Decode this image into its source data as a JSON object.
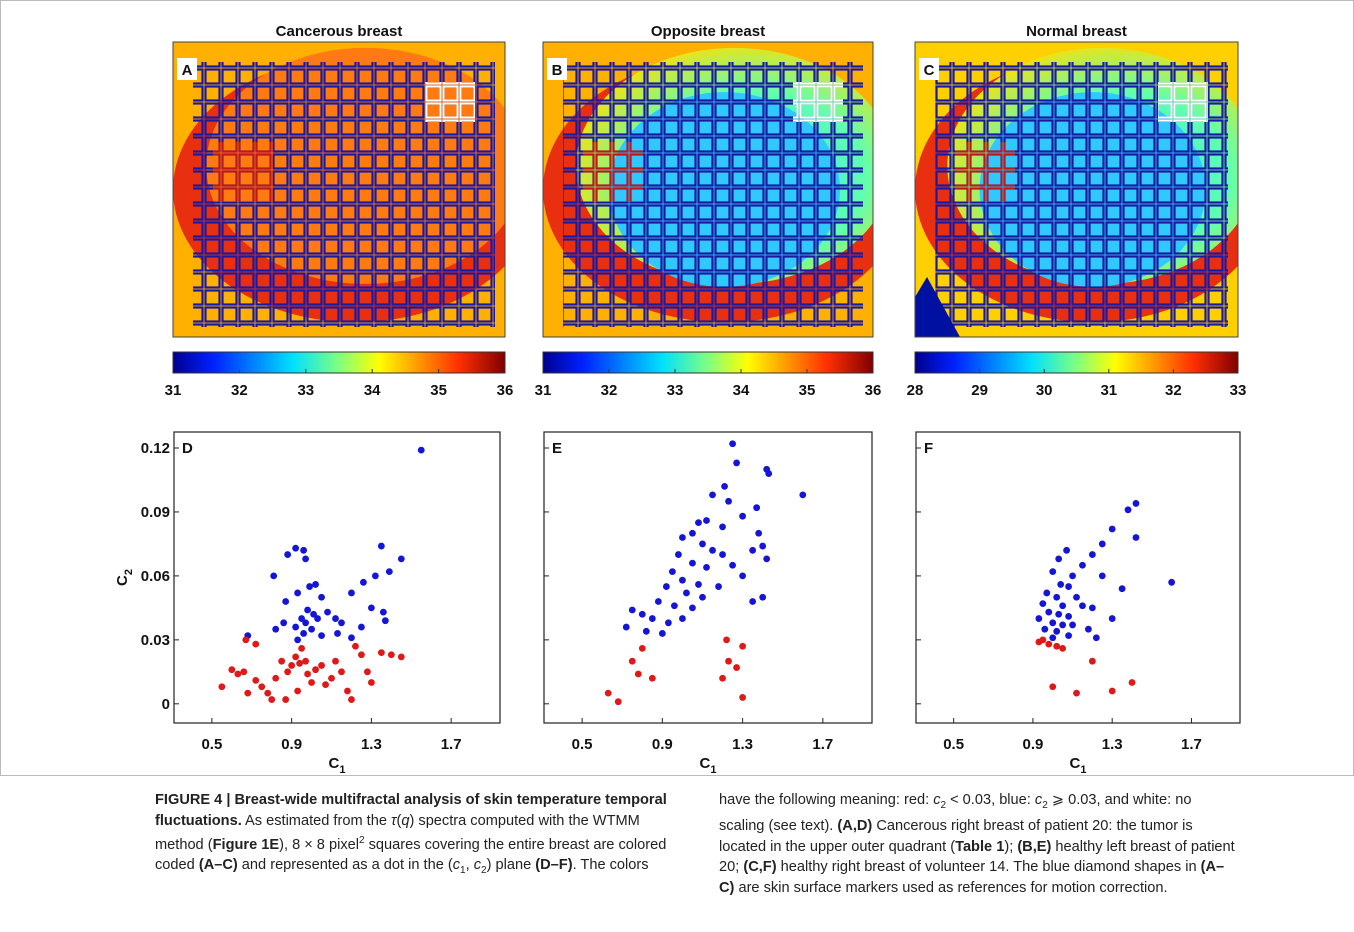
{
  "figure": {
    "images": [
      {
        "title": "Cancerous breast",
        "letter": "A",
        "cbar_lim": [
          31,
          36
        ],
        "cbar_ticks": [
          31,
          32,
          33,
          34,
          35,
          36
        ]
      },
      {
        "title": "Opposite breast",
        "letter": "B",
        "cbar_lim": [
          31,
          36
        ],
        "cbar_ticks": [
          31,
          32,
          33,
          34,
          35,
          36
        ]
      },
      {
        "title": "Normal breast",
        "letter": "C",
        "cbar_lim": [
          28,
          33
        ],
        "cbar_ticks": [
          28,
          29,
          30,
          31,
          32,
          33
        ]
      }
    ],
    "caption": [
      {
        "text": "FIGURE 4 | Breast-wide multifractal analysis of skin temperature temporal fluctuations.",
        "style": "b"
      },
      {
        "text": " As estimated from the "
      },
      {
        "text": "τ",
        "style": "i"
      },
      {
        "text": "("
      },
      {
        "text": "q",
        "style": "i"
      },
      {
        "text": ") spectra computed with the WTMM method ("
      },
      {
        "text": "Figure 1E",
        "style": "b"
      },
      {
        "text": "), 8 × 8 pixel"
      },
      {
        "text": "2",
        "style": "sup"
      },
      {
        "text": " squares covering the entire breast are colored coded "
      },
      {
        "text": "(A–C)",
        "style": "b"
      },
      {
        "text": " and represented as a dot in the ("
      },
      {
        "text": "c",
        "style": "i"
      },
      {
        "text": "1",
        "style": "sub"
      },
      {
        "text": ", "
      },
      {
        "text": "c",
        "style": "i"
      },
      {
        "text": "2",
        "style": "sub"
      },
      {
        "text": ") plane "
      },
      {
        "text": "(D–F)",
        "style": "b"
      },
      {
        "text": ". The colors have the following meaning: red: "
      },
      {
        "text": "c",
        "style": "i"
      },
      {
        "text": "2",
        "style": "sub"
      },
      {
        "text": " < 0.03, blue: "
      },
      {
        "text": "c",
        "style": "i"
      },
      {
        "text": "2",
        "style": "sub"
      },
      {
        "text": " ⩾ 0.03, and white: no scaling (see text). "
      },
      {
        "text": "(A,D)",
        "style": "b"
      },
      {
        "text": " Cancerous right breast of patient 20: the tumor is located in the upper outer quadrant ("
      },
      {
        "text": "Table 1",
        "style": "b"
      },
      {
        "text": "); "
      },
      {
        "text": "(B,E)",
        "style": "b"
      },
      {
        "text": " healthy left breast of patient 20; "
      },
      {
        "text": "(C,F)",
        "style": "b"
      },
      {
        "text": " healthy right breast of volunteer 14. The blue diamond shapes in "
      },
      {
        "text": "(A–C)",
        "style": "b"
      },
      {
        "text": " are skin surface markers used as references for motion correction."
      }
    ]
  },
  "chart_data": [
    {
      "type": "scatter",
      "letter": "D",
      "xlim": [
        0.31,
        1.945
      ],
      "ylim": [
        -0.009,
        0.1275
      ],
      "xticks": [
        0.5,
        0.9,
        1.3,
        1.7
      ],
      "yticks": [
        0,
        0.03,
        0.06,
        0.09,
        0.12
      ],
      "show_ytick_labels": true,
      "x_label": {
        "base": "C",
        "sub": "1"
      },
      "y_label": {
        "base": "C",
        "sub": "2"
      },
      "series": [
        {
          "color": "#1515d8",
          "x": [
            1.55,
            0.92,
            0.96,
            0.88,
            0.97,
            1.35,
            1.45,
            1.39,
            1.32,
            1.26,
            1.2,
            0.81,
            1.02,
            0.99,
            1.05,
            0.93,
            0.87,
            0.98,
            1.01,
            0.95,
            0.97,
            1.03,
            0.92,
            1.0,
            0.96,
            1.08,
            1.12,
            1.15,
            1.25,
            1.3,
            1.36,
            1.37,
            1.13,
            0.86,
            0.82,
            0.68,
            1.05,
            0.93,
            1.2
          ],
          "y": [
            0.119,
            0.073,
            0.072,
            0.07,
            0.068,
            0.074,
            0.068,
            0.062,
            0.06,
            0.057,
            0.052,
            0.06,
            0.056,
            0.055,
            0.05,
            0.052,
            0.048,
            0.044,
            0.042,
            0.04,
            0.038,
            0.04,
            0.036,
            0.035,
            0.033,
            0.043,
            0.04,
            0.038,
            0.036,
            0.045,
            0.043,
            0.039,
            0.033,
            0.038,
            0.035,
            0.032,
            0.032,
            0.03,
            0.031
          ]
        },
        {
          "color": "#e01818",
          "x": [
            0.55,
            0.6,
            0.63,
            0.66,
            0.68,
            0.72,
            0.75,
            0.78,
            0.8,
            0.82,
            0.85,
            0.88,
            0.9,
            0.92,
            0.94,
            0.95,
            0.97,
            0.98,
            1.0,
            1.02,
            1.05,
            1.07,
            1.1,
            1.12,
            1.15,
            1.18,
            1.2,
            1.22,
            1.25,
            1.28,
            1.3,
            1.35,
            1.4,
            1.45,
            0.67,
            0.72,
            0.93,
            0.87
          ],
          "y": [
            0.008,
            0.016,
            0.014,
            0.015,
            0.005,
            0.011,
            0.008,
            0.005,
            0.002,
            0.012,
            0.02,
            0.015,
            0.018,
            0.022,
            0.019,
            0.026,
            0.02,
            0.014,
            0.01,
            0.016,
            0.018,
            0.009,
            0.012,
            0.02,
            0.015,
            0.006,
            0.002,
            0.027,
            0.023,
            0.015,
            0.01,
            0.024,
            0.023,
            0.022,
            0.03,
            0.028,
            0.006,
            0.002
          ]
        }
      ]
    },
    {
      "type": "scatter",
      "letter": "E",
      "xlim": [
        0.31,
        1.945
      ],
      "ylim": [
        -0.009,
        0.1275
      ],
      "xticks": [
        0.5,
        0.9,
        1.3,
        1.7
      ],
      "yticks": [
        0,
        0.03,
        0.06,
        0.09,
        0.12
      ],
      "show_ytick_labels": false,
      "x_label": {
        "base": "C",
        "sub": "1"
      },
      "series": [
        {
          "color": "#1515d8",
          "x": [
            1.25,
            1.27,
            1.42,
            1.43,
            1.6,
            1.21,
            1.15,
            1.23,
            1.37,
            1.3,
            1.12,
            1.08,
            1.2,
            1.38,
            1.4,
            1.35,
            1.42,
            1.05,
            1.1,
            1.0,
            1.15,
            1.2,
            0.98,
            1.05,
            1.12,
            1.25,
            1.3,
            0.95,
            1.0,
            1.08,
            1.18,
            0.92,
            1.02,
            1.1,
            0.88,
            0.96,
            1.05,
            0.8,
            0.75,
            0.85,
            0.93,
            1.0,
            0.72,
            0.82,
            0.9,
            1.35,
            1.4
          ],
          "y": [
            0.122,
            0.113,
            0.11,
            0.108,
            0.098,
            0.102,
            0.098,
            0.095,
            0.092,
            0.088,
            0.086,
            0.085,
            0.083,
            0.08,
            0.074,
            0.072,
            0.068,
            0.08,
            0.075,
            0.078,
            0.072,
            0.07,
            0.07,
            0.066,
            0.064,
            0.065,
            0.06,
            0.062,
            0.058,
            0.056,
            0.055,
            0.055,
            0.052,
            0.05,
            0.048,
            0.046,
            0.045,
            0.042,
            0.044,
            0.04,
            0.038,
            0.04,
            0.036,
            0.034,
            0.033,
            0.048,
            0.05
          ]
        },
        {
          "color": "#e01818",
          "x": [
            1.22,
            1.3,
            0.8,
            0.75,
            1.23,
            1.2,
            1.27,
            0.78,
            0.85,
            0.63,
            0.68,
            1.3
          ],
          "y": [
            0.03,
            0.027,
            0.026,
            0.02,
            0.02,
            0.012,
            0.017,
            0.014,
            0.012,
            0.005,
            0.001,
            0.003
          ]
        }
      ]
    },
    {
      "type": "scatter",
      "letter": "F",
      "xlim": [
        0.31,
        1.945
      ],
      "ylim": [
        -0.009,
        0.1275
      ],
      "xticks": [
        0.5,
        0.9,
        1.3,
        1.7
      ],
      "yticks": [
        0,
        0.03,
        0.06,
        0.09,
        0.12
      ],
      "show_ytick_labels": false,
      "x_label": {
        "base": "C",
        "sub": "1"
      },
      "series": [
        {
          "color": "#1515d8",
          "x": [
            1.42,
            1.38,
            1.3,
            1.42,
            1.25,
            1.07,
            1.2,
            1.03,
            1.15,
            1.0,
            1.1,
            1.25,
            1.6,
            1.04,
            1.08,
            1.35,
            0.97,
            1.02,
            1.12,
            0.95,
            1.05,
            1.15,
            1.2,
            0.98,
            1.03,
            1.08,
            0.93,
            1.0,
            1.05,
            1.1,
            1.3,
            1.18,
            0.96,
            1.02,
            1.08,
            1.22,
            1.0
          ],
          "y": [
            0.094,
            0.091,
            0.082,
            0.078,
            0.075,
            0.072,
            0.07,
            0.068,
            0.065,
            0.062,
            0.06,
            0.06,
            0.057,
            0.056,
            0.055,
            0.054,
            0.052,
            0.05,
            0.05,
            0.047,
            0.046,
            0.046,
            0.045,
            0.043,
            0.042,
            0.041,
            0.04,
            0.038,
            0.037,
            0.037,
            0.04,
            0.035,
            0.035,
            0.034,
            0.032,
            0.031,
            0.031
          ]
        },
        {
          "color": "#e01818",
          "x": [
            0.95,
            0.98,
            1.02,
            1.05,
            0.93,
            1.2,
            1.0,
            1.12,
            1.3,
            1.4
          ],
          "y": [
            0.03,
            0.028,
            0.027,
            0.026,
            0.029,
            0.02,
            0.008,
            0.005,
            0.006,
            0.01
          ]
        }
      ]
    }
  ]
}
